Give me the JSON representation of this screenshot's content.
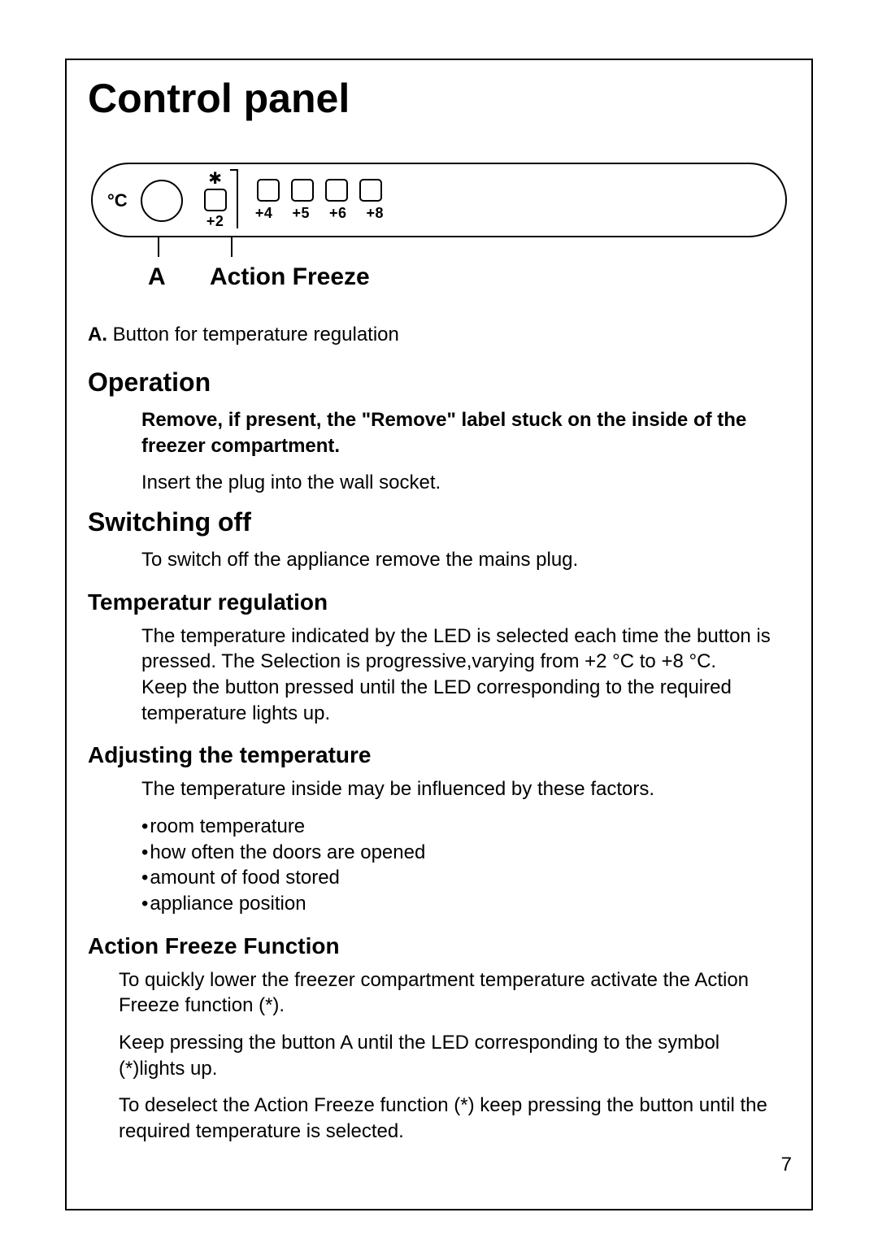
{
  "title": "Control panel",
  "panel": {
    "unit_label": "°C",
    "snowflake_glyph": "✱",
    "temp_labels": [
      "+2",
      "+4",
      "+5",
      "+6",
      "+8"
    ],
    "callout_a": "A",
    "callout_action": "Action Freeze"
  },
  "legend": {
    "a_key": "A.",
    "a_text": "Button for temperature regulation"
  },
  "sections": {
    "operation": {
      "heading": "Operation",
      "p1": "Remove, if present, the \"Remove\" label stuck on the inside of the freezer compartment.",
      "p2": "Insert the plug into the wall socket."
    },
    "switching_off": {
      "heading": "Switching off",
      "p1": "To switch off the appliance remove the mains plug."
    },
    "temp_reg": {
      "heading": "Temperatur regulation",
      "p1": "The temperature indicated by the LED is selected each time the button is pressed. The Selection is progressive,varying from +2 °C to +8 °C.",
      "p2": "Keep the button pressed until the LED corresponding to the required temperature lights up."
    },
    "adjusting": {
      "heading": "Adjusting the temperature",
      "intro": "The temperature inside may be influenced by these factors.",
      "bullets": [
        "room temperature",
        "how often the doors are opened",
        "amount of food stored",
        "appliance position"
      ]
    },
    "action_freeze": {
      "heading": "Action Freeze Function",
      "p1": "To quickly lower the freezer compartment temperature activate the Action Freeze function (*).",
      "p2": "Keep pressing the button A until the LED corresponding to the symbol (*)lights up.",
      "p3": "To deselect the Action Freeze function (*) keep pressing the button until the required temperature is selected."
    }
  },
  "page_number": "7"
}
